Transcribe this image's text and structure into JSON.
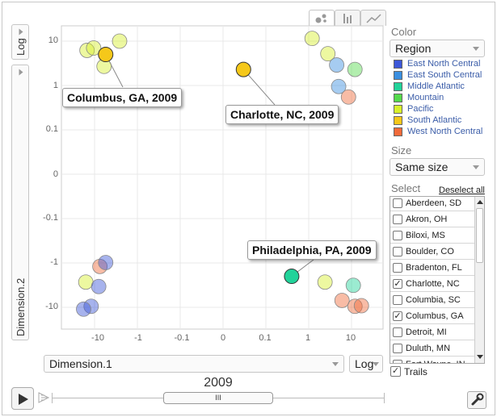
{
  "y_axis": {
    "scale_label": "Log",
    "dimension_label": "Dimension.2",
    "tick_labels": [
      "10",
      "1",
      "0.1",
      "0",
      "-0.1",
      "-1",
      "-10"
    ]
  },
  "x_axis": {
    "dimension_label": "Dimension.1",
    "scale_label": "Log",
    "tick_labels": [
      "-10",
      "-1",
      "-0.1",
      "0",
      "0.1",
      "1",
      "10"
    ]
  },
  "chart_tabs": [
    {
      "name": "bubble",
      "active": true
    },
    {
      "name": "bar",
      "active": false
    },
    {
      "name": "line",
      "active": false
    }
  ],
  "color_panel": {
    "label": "Color",
    "selected": "Region",
    "legend": [
      {
        "name": "East North Central",
        "color": "#3c57d8"
      },
      {
        "name": "East South Central",
        "color": "#3a8fe0"
      },
      {
        "name": "Middle Atlantic",
        "color": "#22d39a"
      },
      {
        "name": "Mountain",
        "color": "#55d94c"
      },
      {
        "name": "Pacific",
        "color": "#d8f02c"
      },
      {
        "name": "South Atlantic",
        "color": "#f5c81a"
      },
      {
        "name": "West North Central",
        "color": "#f06a3a"
      }
    ]
  },
  "size_panel": {
    "label": "Size",
    "selected": "Same size"
  },
  "select_panel": {
    "label": "Select",
    "deselect_label": "Deselect all",
    "items": [
      {
        "label": "Aberdeen, SD",
        "checked": false
      },
      {
        "label": "Akron, OH",
        "checked": false
      },
      {
        "label": "Biloxi, MS",
        "checked": false
      },
      {
        "label": "Boulder, CO",
        "checked": false
      },
      {
        "label": "Bradenton, FL",
        "checked": false
      },
      {
        "label": "Charlotte, NC",
        "checked": true
      },
      {
        "label": "Columbia, SC",
        "checked": false
      },
      {
        "label": "Columbus, GA",
        "checked": true
      },
      {
        "label": "Detroit, MI",
        "checked": false
      },
      {
        "label": "Duluth, MN",
        "checked": false
      },
      {
        "label": "Fort Wayne, IN",
        "checked": false
      }
    ]
  },
  "trails": {
    "label": "Trails",
    "checked": true
  },
  "playback": {
    "year": "2009",
    "slider_grip": "III"
  },
  "callouts": {
    "columbus": "Columbus, GA, 2009",
    "charlotte": "Charlotte, NC, 2009",
    "philadelphia": "Philadelphia, PA, 2009"
  },
  "chart_data": {
    "type": "scatter",
    "xlabel": "Dimension.1",
    "ylabel": "Dimension.2",
    "xscale": "log",
    "yscale": "log",
    "x_ticks": [
      -10,
      -1,
      -0.1,
      0,
      0.1,
      1,
      10
    ],
    "y_ticks": [
      10,
      1,
      0.1,
      0,
      -0.1,
      -1,
      -10
    ],
    "points": [
      {
        "x": -15,
        "y": 6.2,
        "region": "Pacific"
      },
      {
        "x": -10.5,
        "y": 7.0,
        "region": "Pacific"
      },
      {
        "x": -6,
        "y": 2.7,
        "region": "Pacific"
      },
      {
        "x": -2.6,
        "y": 10,
        "region": "Pacific"
      },
      {
        "x": -5.5,
        "y": 5,
        "region": "South Atlantic",
        "label": "Columbus, GA, 2009"
      },
      {
        "x": 0.03,
        "y": 2.3,
        "region": "South Atlantic",
        "label": "Charlotte, NC, 2009"
      },
      {
        "x": 1.2,
        "y": 11.5,
        "region": "Pacific"
      },
      {
        "x": 2.8,
        "y": 5.2,
        "region": "Pacific"
      },
      {
        "x": 4.5,
        "y": 2.9,
        "region": "East South Central"
      },
      {
        "x": 12,
        "y": 2.3,
        "region": "Mountain"
      },
      {
        "x": 5,
        "y": 0.95,
        "region": "East South Central"
      },
      {
        "x": 8.5,
        "y": 0.55,
        "region": "West North Central"
      },
      {
        "x": -7.5,
        "y": -1.2,
        "region": "West North Central"
      },
      {
        "x": -5.5,
        "y": -0.98,
        "region": "East North Central"
      },
      {
        "x": -16,
        "y": -2.7,
        "region": "Pacific"
      },
      {
        "x": -8,
        "y": -3.4,
        "region": "East North Central"
      },
      {
        "x": -12,
        "y": -9.5,
        "region": "East North Central"
      },
      {
        "x": -18,
        "y": -11,
        "region": "East North Central"
      },
      {
        "x": 0.4,
        "y": -2,
        "region": "Middle Atlantic",
        "label": "Philadelphia, PA, 2009"
      },
      {
        "x": 2.4,
        "y": -2.7,
        "region": "Pacific"
      },
      {
        "x": 6,
        "y": -7,
        "region": "West North Central"
      },
      {
        "x": 11,
        "y": -3.2,
        "region": "Middle Atlantic"
      },
      {
        "x": 12,
        "y": -9.5,
        "region": "West North Central"
      },
      {
        "x": 17,
        "y": -9.2,
        "region": "West North Central"
      }
    ]
  }
}
